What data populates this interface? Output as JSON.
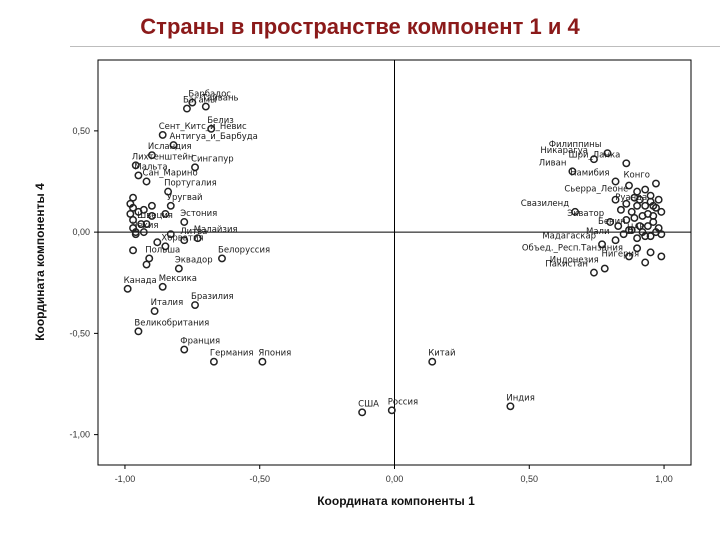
{
  "slide_title": "Страны в пространстве компонент 1 и 4",
  "chart_data": {
    "type": "scatter",
    "xlabel": "Координата компоненты 1",
    "ylabel": "Координата компоненты 4",
    "xlim": [
      -1.1,
      1.1
    ],
    "ylim": [
      -1.15,
      0.85
    ],
    "x_ticks": [
      -1.0,
      -0.5,
      0.0,
      0.5,
      1.0
    ],
    "x_tick_labels": [
      "-1,00",
      "-0,50",
      "0,00",
      "0,50",
      "1,00"
    ],
    "y_ticks": [
      -1.0,
      -0.5,
      0.0,
      0.5
    ],
    "y_tick_labels": [
      "-1,00",
      "-0,50",
      "0,00",
      "0,50"
    ],
    "reference_lines": {
      "x": 0.0,
      "y": 0.0
    },
    "labeled_points": [
      {
        "name": "Барбадос",
        "x": -0.75,
        "y": 0.64
      },
      {
        "name": "Багамы",
        "x": -0.77,
        "y": 0.61
      },
      {
        "name": "Тайвань",
        "x": -0.7,
        "y": 0.62
      },
      {
        "name": "Белиз",
        "x": -0.68,
        "y": 0.51
      },
      {
        "name": "Сент_Китс_и_Невис",
        "x": -0.86,
        "y": 0.48
      },
      {
        "name": "Антигуа_и_Барбуда",
        "x": -0.82,
        "y": 0.43
      },
      {
        "name": "Исландия",
        "x": -0.9,
        "y": 0.38
      },
      {
        "name": "Сингапур",
        "x": -0.74,
        "y": 0.32
      },
      {
        "name": "Лихтенштейн",
        "x": -0.96,
        "y": 0.33
      },
      {
        "name": "Мальта",
        "x": -0.95,
        "y": 0.28
      },
      {
        "name": "Сан_Марино",
        "x": -0.92,
        "y": 0.25
      },
      {
        "name": "Португалия",
        "x": -0.84,
        "y": 0.2
      },
      {
        "name": "Уругвай",
        "x": -0.83,
        "y": 0.13
      },
      {
        "name": "Швеция",
        "x": -0.94,
        "y": 0.04
      },
      {
        "name": "Эстония",
        "x": -0.78,
        "y": 0.05
      },
      {
        "name": "Чехия",
        "x": -0.96,
        "y": -0.01
      },
      {
        "name": "Литва",
        "x": -0.78,
        "y": -0.04
      },
      {
        "name": "Малайзия",
        "x": -0.73,
        "y": -0.03
      },
      {
        "name": "Хорватия",
        "x": -0.85,
        "y": -0.07
      },
      {
        "name": "Польша",
        "x": -0.91,
        "y": -0.13
      },
      {
        "name": "Белоруссия",
        "x": -0.64,
        "y": -0.13
      },
      {
        "name": "Эквадор",
        "x": -0.8,
        "y": -0.18
      },
      {
        "name": "Канада",
        "x": -0.99,
        "y": -0.28
      },
      {
        "name": "Мексика",
        "x": -0.86,
        "y": -0.27
      },
      {
        "name": "Италия",
        "x": -0.89,
        "y": -0.39
      },
      {
        "name": "Бразилия",
        "x": -0.74,
        "y": -0.36
      },
      {
        "name": "Великобритания",
        "x": -0.95,
        "y": -0.49
      },
      {
        "name": "Франция",
        "x": -0.78,
        "y": -0.58
      },
      {
        "name": "Германия",
        "x": -0.67,
        "y": -0.64
      },
      {
        "name": "Япония",
        "x": -0.49,
        "y": -0.64
      },
      {
        "name": "Китай",
        "x": 0.14,
        "y": -0.64
      },
      {
        "name": "Индия",
        "x": 0.43,
        "y": -0.86
      },
      {
        "name": "Россия",
        "x": -0.01,
        "y": -0.88
      },
      {
        "name": "США",
        "x": -0.12,
        "y": -0.89
      },
      {
        "name": "Филиппины",
        "x": 0.79,
        "y": 0.39
      },
      {
        "name": "Шри_Ланка",
        "x": 0.86,
        "y": 0.34
      },
      {
        "name": "Никарагуа",
        "x": 0.74,
        "y": 0.36
      },
      {
        "name": "Ливан",
        "x": 0.66,
        "y": 0.3
      },
      {
        "name": "Намибия",
        "x": 0.82,
        "y": 0.25
      },
      {
        "name": "Конго",
        "x": 0.97,
        "y": 0.24
      },
      {
        "name": "Сьерра_Леоне",
        "x": 0.89,
        "y": 0.17
      },
      {
        "name": "Руанда",
        "x": 0.96,
        "y": 0.13
      },
      {
        "name": "Свазиленд",
        "x": 0.67,
        "y": 0.1
      },
      {
        "name": "Экватор",
        "x": 0.8,
        "y": 0.05
      },
      {
        "name": "Бенин",
        "x": 0.88,
        "y": 0.01
      },
      {
        "name": "ЦАР",
        "x": 0.95,
        "y": -0.02
      },
      {
        "name": "Мали",
        "x": 0.82,
        "y": -0.04
      },
      {
        "name": "Мадагаскар",
        "x": 0.77,
        "y": -0.06
      },
      {
        "name": "Объед._Респ.Танзания",
        "x": 0.87,
        "y": -0.12
      },
      {
        "name": "Нигерия",
        "x": 0.93,
        "y": -0.15
      },
      {
        "name": "Индонезия",
        "x": 0.78,
        "y": -0.18
      },
      {
        "name": "Пакистан",
        "x": 0.74,
        "y": -0.2
      }
    ],
    "unlabeled_points": [
      [
        -0.97,
        0.17
      ],
      [
        -0.98,
        0.14
      ],
      [
        -0.97,
        0.12
      ],
      [
        -0.98,
        0.09
      ],
      [
        -0.95,
        0.1
      ],
      [
        -0.93,
        0.11
      ],
      [
        -0.9,
        0.08
      ],
      [
        -0.92,
        0.04
      ],
      [
        -0.97,
        0.02
      ],
      [
        -0.96,
        0.0
      ],
      [
        -0.93,
        0.0
      ],
      [
        -0.88,
        -0.05
      ],
      [
        -0.97,
        -0.09
      ],
      [
        -0.92,
        -0.16
      ],
      [
        -0.83,
        -0.01
      ],
      [
        -0.9,
        0.13
      ],
      [
        -0.85,
        0.09
      ],
      [
        -0.97,
        0.06
      ],
      [
        0.87,
        0.23
      ],
      [
        0.9,
        0.2
      ],
      [
        0.93,
        0.21
      ],
      [
        0.95,
        0.18
      ],
      [
        0.98,
        0.16
      ],
      [
        0.86,
        0.14
      ],
      [
        0.9,
        0.13
      ],
      [
        0.93,
        0.13
      ],
      [
        0.97,
        0.12
      ],
      [
        0.92,
        0.08
      ],
      [
        0.94,
        0.09
      ],
      [
        0.96,
        0.08
      ],
      [
        0.99,
        0.1
      ],
      [
        0.83,
        0.03
      ],
      [
        0.86,
        0.06
      ],
      [
        0.89,
        0.07
      ],
      [
        0.91,
        0.03
      ],
      [
        0.94,
        0.03
      ],
      [
        0.96,
        0.05
      ],
      [
        0.98,
        0.02
      ],
      [
        0.85,
        -0.01
      ],
      [
        0.9,
        -0.03
      ],
      [
        0.92,
        0.0
      ],
      [
        0.99,
        -0.01
      ],
      [
        0.84,
        0.11
      ],
      [
        0.88,
        0.1
      ],
      [
        0.95,
        0.15
      ],
      [
        0.9,
        -0.08
      ],
      [
        0.95,
        -0.1
      ],
      [
        0.99,
        -0.12
      ],
      [
        0.91,
        0.16
      ],
      [
        0.87,
        0.01
      ],
      [
        0.97,
        0.0
      ],
      [
        0.93,
        -0.02
      ],
      [
        0.82,
        0.16
      ]
    ]
  }
}
